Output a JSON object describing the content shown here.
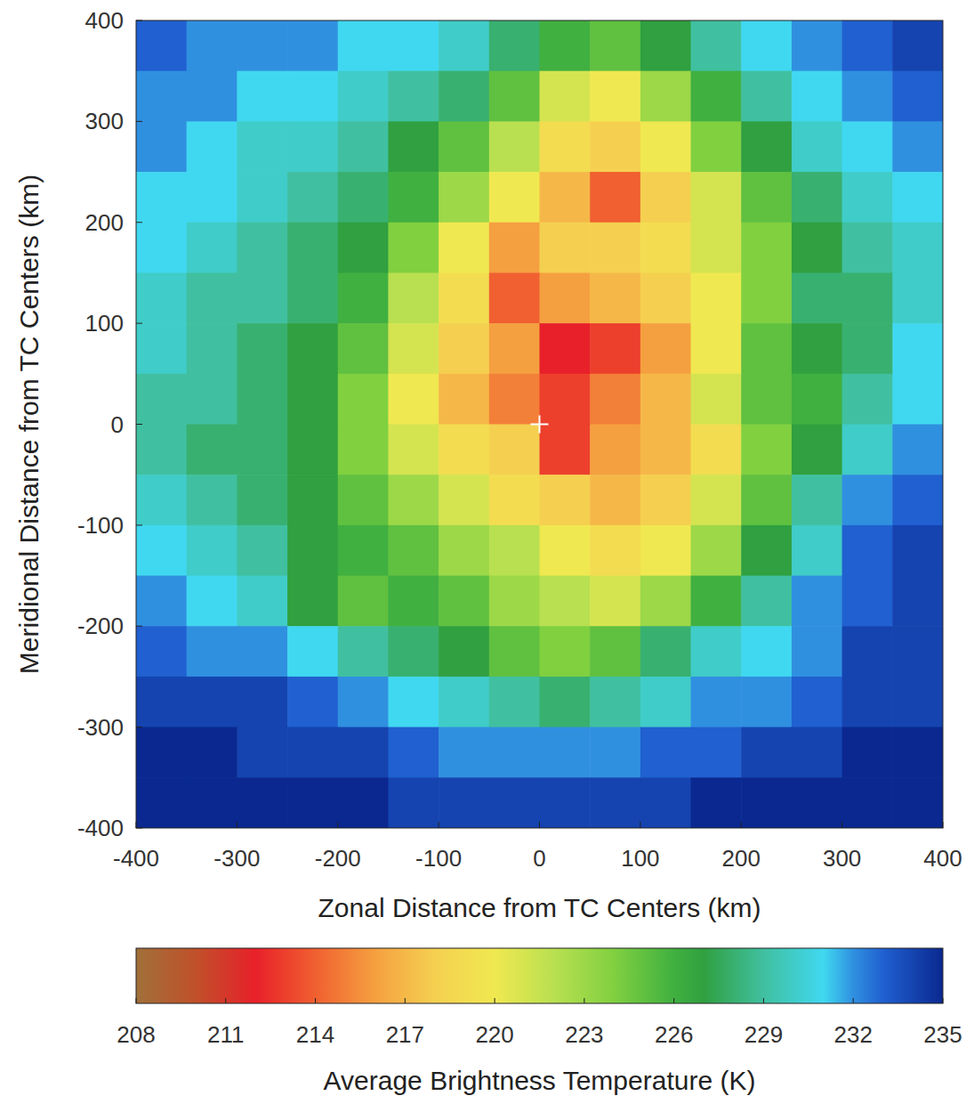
{
  "chart_data": {
    "type": "heatmap",
    "xlabel": "Zonal Distance from TC Centers (km)",
    "ylabel": "Meridional Distance from TC Centers (km)",
    "xlim": [
      -400,
      400
    ],
    "ylim": [
      -400,
      400
    ],
    "xticks": [
      -400,
      -300,
      -200,
      -100,
      0,
      100,
      200,
      300,
      400
    ],
    "yticks": [
      -400,
      -300,
      -200,
      -100,
      0,
      100,
      200,
      300,
      400
    ],
    "x": [
      -375,
      -325,
      -275,
      -225,
      -175,
      -125,
      -75,
      -25,
      25,
      75,
      125,
      175,
      225,
      275,
      325,
      375
    ],
    "y": [
      375,
      325,
      275,
      225,
      175,
      125,
      75,
      25,
      -25,
      -75,
      -125,
      -175,
      -225,
      -275,
      -325,
      -375
    ],
    "cells": [
      [
        233,
        232,
        232,
        232,
        231,
        231,
        230,
        228,
        226,
        225,
        227,
        229,
        231,
        232,
        233,
        234
      ],
      [
        232,
        232,
        231,
        231,
        230,
        229,
        228,
        225,
        221,
        220,
        223,
        226,
        229,
        231,
        232,
        233
      ],
      [
        232,
        231,
        230,
        230,
        229,
        227,
        225,
        222,
        219,
        218,
        220,
        224,
        227,
        230,
        231,
        232
      ],
      [
        231,
        231,
        230,
        229,
        228,
        226,
        223,
        220,
        217,
        214,
        218,
        221,
        225,
        228,
        230,
        231
      ],
      [
        231,
        230,
        229,
        228,
        227,
        224,
        220,
        216,
        218,
        218,
        219,
        221,
        224,
        227,
        229,
        230
      ],
      [
        230,
        229,
        229,
        228,
        226,
        222,
        219,
        214,
        216,
        217,
        218,
        220,
        224,
        228,
        228,
        230
      ],
      [
        230,
        229,
        228,
        227,
        225,
        221,
        218,
        216,
        212,
        213,
        216,
        220,
        225,
        227,
        228,
        231
      ],
      [
        229,
        229,
        228,
        227,
        224,
        220,
        217,
        215,
        213,
        215,
        217,
        221,
        225,
        226,
        229,
        231
      ],
      [
        229,
        228,
        228,
        227,
        224,
        221,
        219,
        218,
        213,
        216,
        217,
        219,
        224,
        227,
        230,
        232
      ],
      [
        230,
        229,
        228,
        227,
        225,
        223,
        221,
        219,
        218,
        217,
        218,
        221,
        225,
        229,
        232,
        233
      ],
      [
        231,
        230,
        229,
        227,
        226,
        225,
        223,
        222,
        220,
        219,
        220,
        223,
        227,
        230,
        233,
        234
      ],
      [
        232,
        231,
        230,
        227,
        225,
        226,
        225,
        223,
        222,
        221,
        223,
        226,
        229,
        232,
        233,
        234
      ],
      [
        233,
        232,
        232,
        231,
        229,
        228,
        227,
        225,
        224,
        225,
        228,
        230,
        231,
        232,
        234,
        234
      ],
      [
        234,
        234,
        234,
        233,
        232,
        231,
        230,
        229,
        228,
        229,
        230,
        232,
        232,
        233,
        234,
        234
      ],
      [
        235,
        235,
        234,
        234,
        234,
        233,
        232,
        232,
        232,
        232,
        233,
        233,
        234,
        234,
        235,
        235
      ],
      [
        235,
        235,
        235,
        235,
        235,
        234,
        234,
        234,
        234,
        234,
        234,
        235,
        235,
        235,
        235,
        235
      ]
    ],
    "center": {
      "x": 0,
      "y": 0
    },
    "colorbar": {
      "range": [
        208,
        235
      ],
      "ticks": [
        208,
        211,
        214,
        217,
        220,
        223,
        226,
        229,
        232,
        235
      ],
      "label": "Average Brightness Temperature (K)"
    }
  }
}
